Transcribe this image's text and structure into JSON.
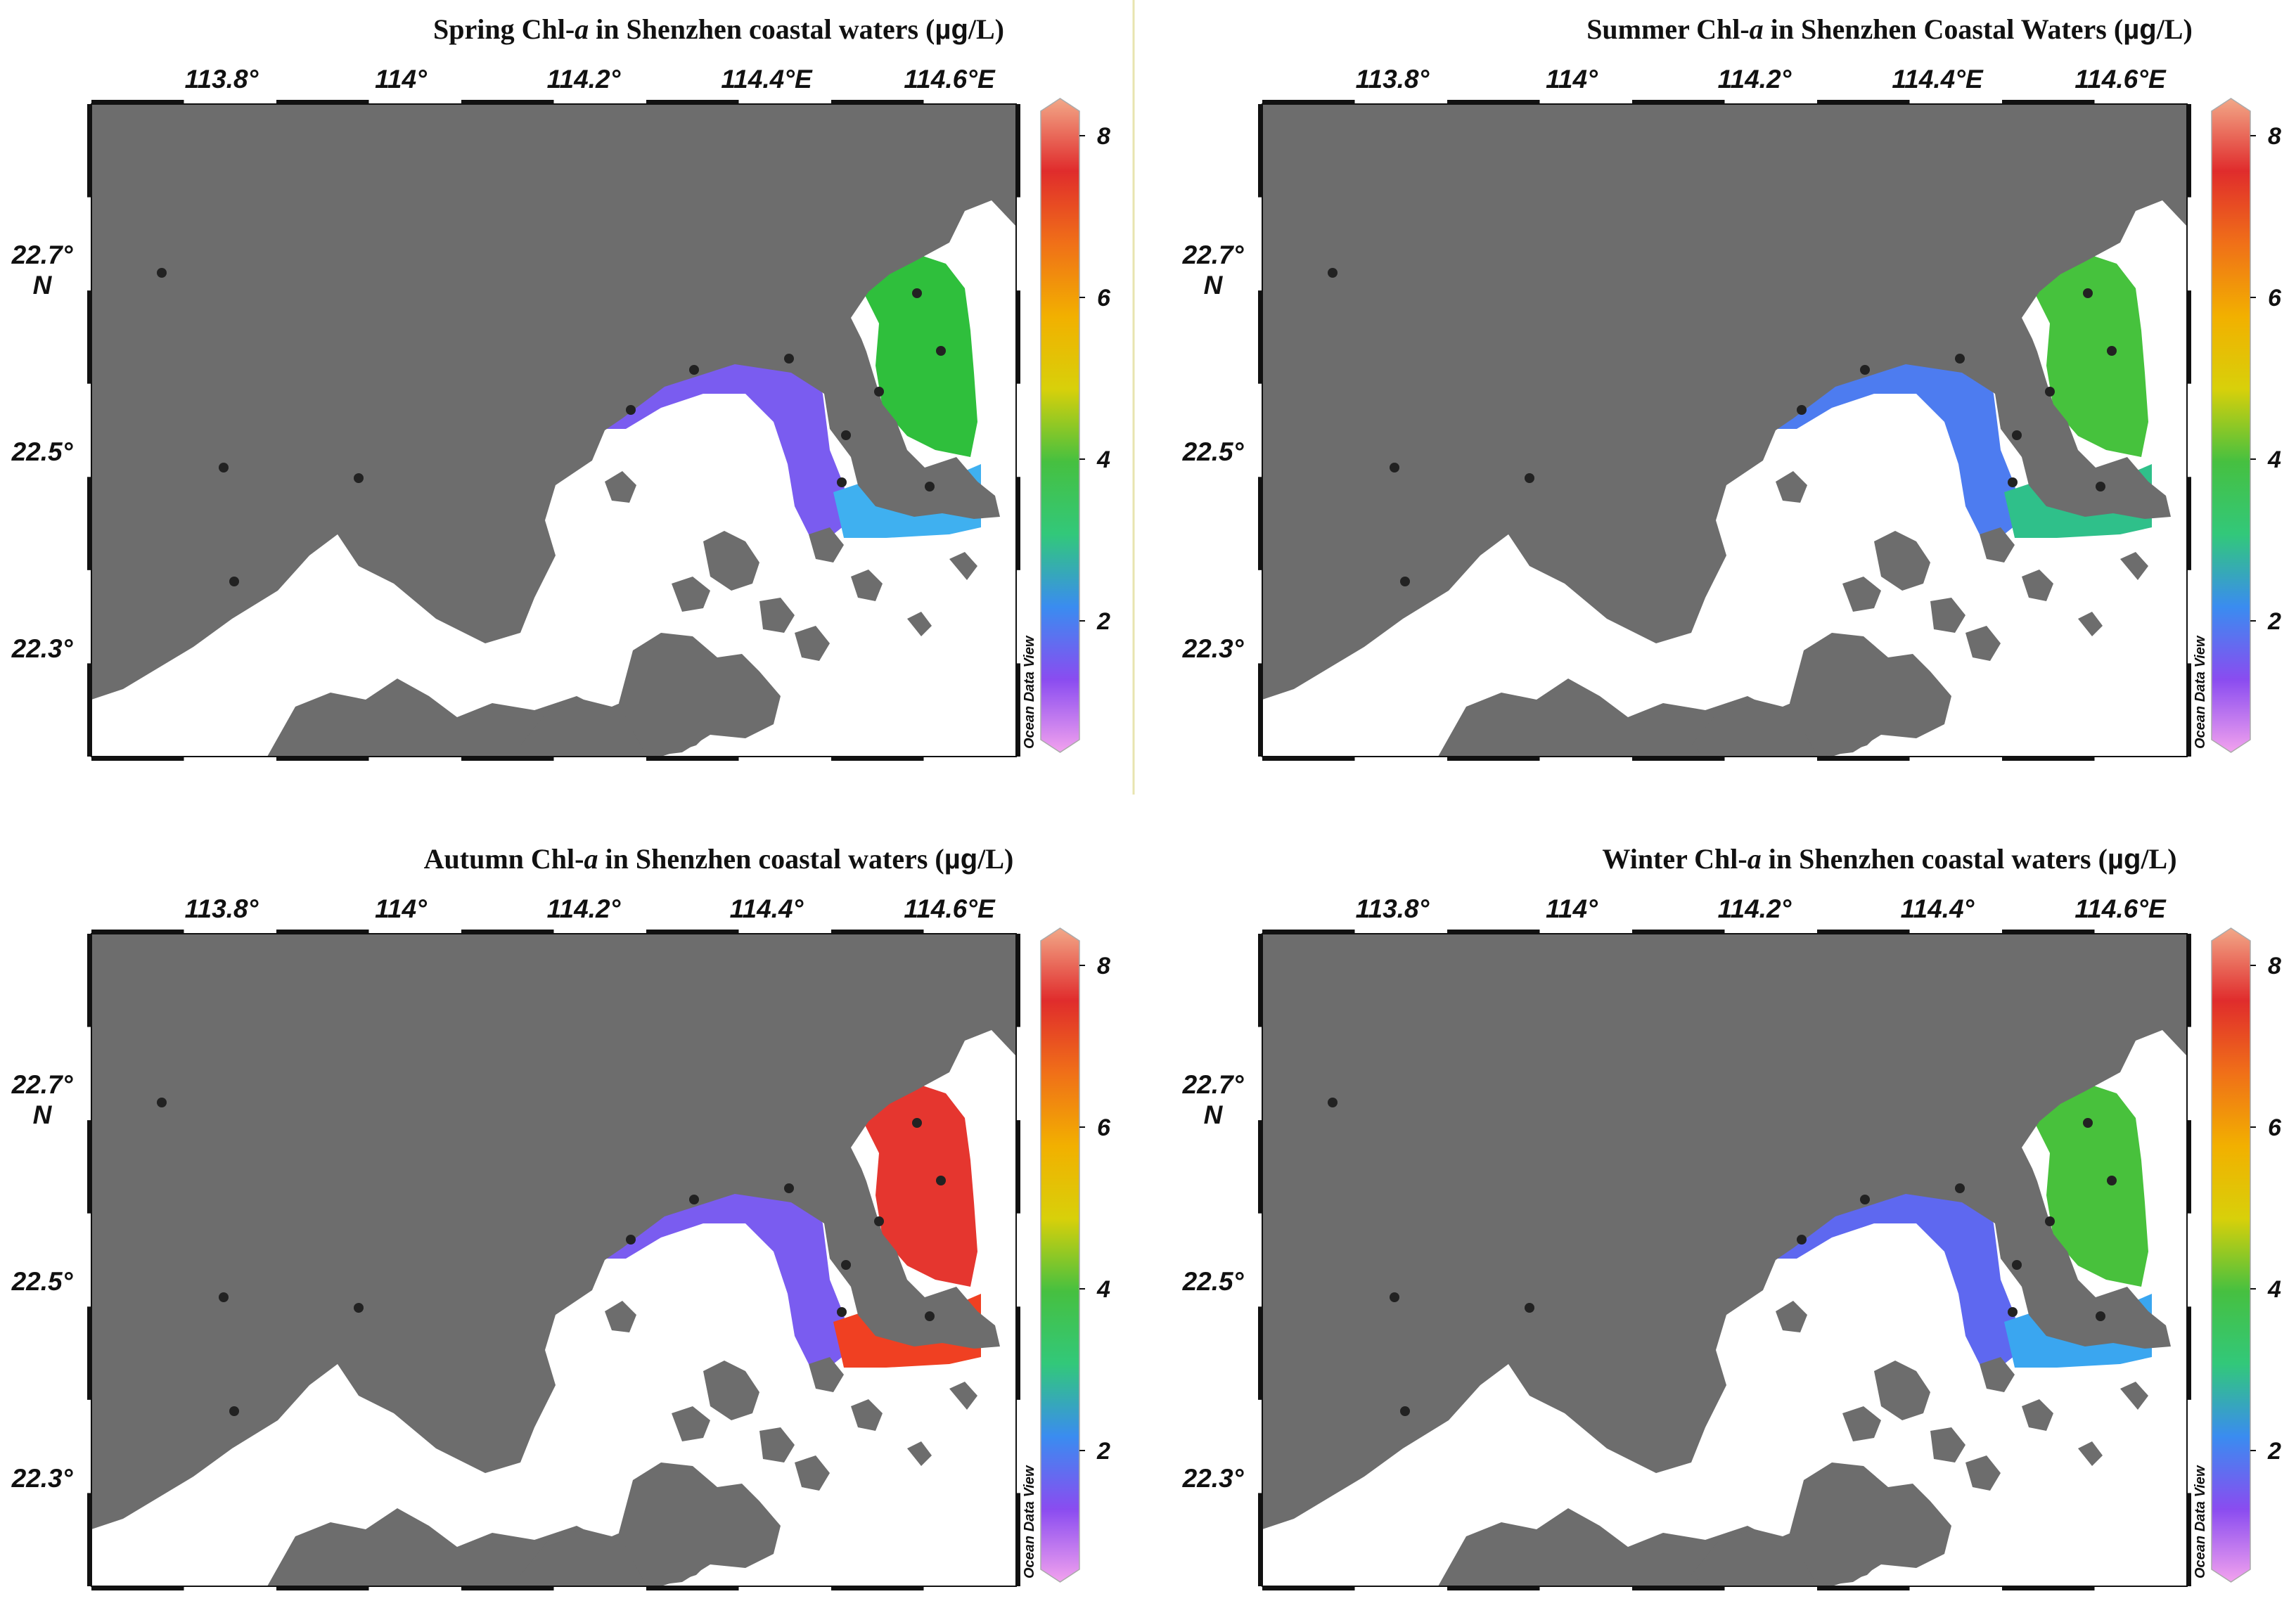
{
  "panels": [
    {
      "id": "spring",
      "title_main": "Spring Chl-",
      "title_italic": "a",
      "title_rest": " in Shenzhen coastal waters (",
      "title_unit": "µg",
      "title_end": "/L)",
      "zones": {
        "west_north": "#f5b100",
        "west_band": "#6dbe3a",
        "west_south": "#7a5cf0",
        "bay": "#3cc878",
        "east_channel": "#7a5cf0",
        "east_bay": "#2fbf3c",
        "east_south": "#3fb0f0"
      }
    },
    {
      "id": "summer",
      "title_main": "Summer Chl-",
      "title_italic": "a",
      "title_rest": " in Shenzhen Coastal Waters (",
      "title_unit": "µg",
      "title_end": "/L)",
      "zones": {
        "west_north": "#f5b100",
        "west_band": "#45c15a",
        "west_south": "#d9cf0a",
        "bay": "#c9c80c",
        "east_channel": "#4d7cf0",
        "east_bay": "#46c23d",
        "east_south": "#2fc08a"
      }
    },
    {
      "id": "autumn",
      "title_main": "Autumn Chl-",
      "title_italic": "a",
      "title_rest": " in Shenzhen coastal waters (",
      "title_unit": "µg",
      "title_end": "/L)",
      "zones": {
        "west_north": "#b7c41c",
        "west_band": "#4fc04a",
        "west_south": "#3ab4d2",
        "bay": "#38c06a",
        "east_channel": "#7a5cf0",
        "east_bay": "#e5362f",
        "east_south": "#f04022"
      }
    },
    {
      "id": "winter",
      "title_main": "Winter Chl-",
      "title_italic": "a",
      "title_rest": " in Shenzhen coastal waters (",
      "title_unit": "µg",
      "title_end": "/L)",
      "zones": {
        "west_north": "#ef8a70",
        "west_band": "#e03030",
        "west_south": "#e8c60a",
        "bay": "#5ac23c",
        "east_channel": "#5e68f0",
        "east_bay": "#48c13c",
        "east_south": "#3aa6f0"
      }
    }
  ],
  "axes": {
    "x_ticks": [
      "113.8°",
      "114°",
      "114.2°",
      "114.4°E",
      "114.6°E"
    ],
    "x_ticks_lower_right": [
      "113.8°",
      "114°",
      "114.2°",
      "114.4°",
      "114.6°E"
    ],
    "x_ticks_lower_left": [
      "113.8°",
      "114°",
      "114.2°",
      "114.4°",
      "114.6°E"
    ],
    "y_ticks": [
      "22.7°",
      "22.5°",
      "22.3°"
    ],
    "y_unit": "N"
  },
  "colorbar": {
    "ticks": [
      "8",
      "6",
      "4",
      "2"
    ],
    "credit": "Ocean Data View",
    "stops": [
      "#f2a2ee",
      "#8a4cf0",
      "#3a8cf0",
      "#32c87a",
      "#46c040",
      "#d8d00a",
      "#f2b000",
      "#f07018",
      "#e02c2c",
      "#f2a888"
    ]
  },
  "colors": {
    "land": "#6d6d6d",
    "frame": "#111111",
    "station": "#222222",
    "divider": "#e8e4b0"
  }
}
